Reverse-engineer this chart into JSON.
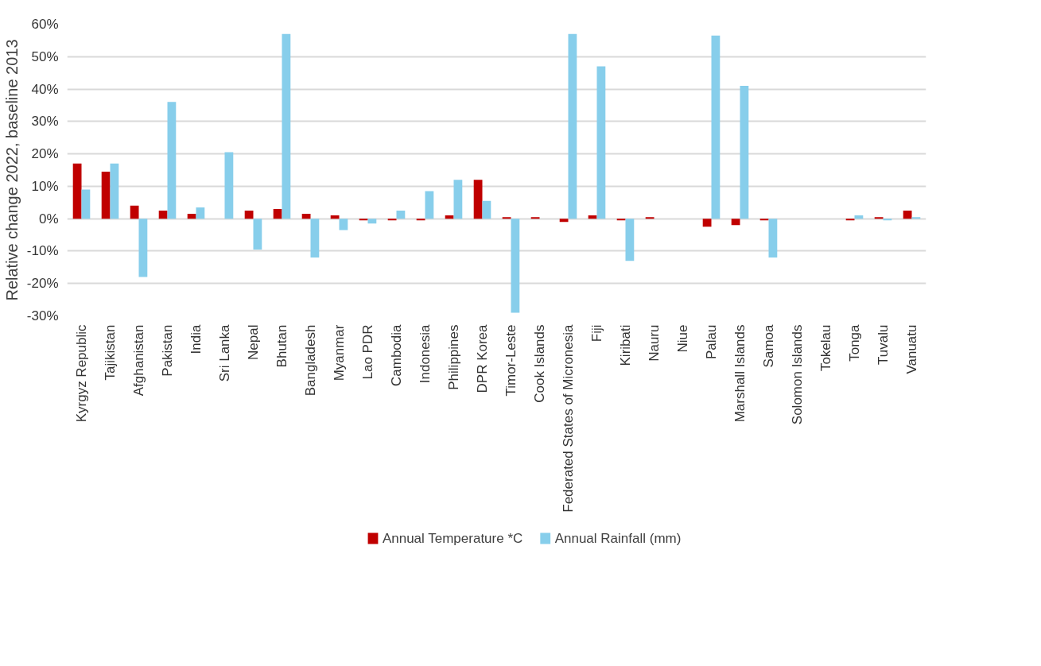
{
  "chart_data": {
    "type": "bar",
    "ylabel": "Relative change 2022, baseline 2013",
    "categories": [
      "Kyrgyz Republic",
      "Tajikistan",
      "Afghanistan",
      "Pakistan",
      "India",
      "Sri Lanka",
      "Nepal",
      "Bhutan",
      "Bangladesh",
      "Myanmar",
      "Lao PDR",
      "Cambodia",
      "Indonesia",
      "Philippines",
      "DPR Korea",
      "Timor-Leste",
      "Cook Islands",
      "Federated States of Micronesia",
      "Fiji",
      "Kiribati",
      "Nauru",
      "Niue",
      "Palau",
      "Marshall Islands",
      "Samoa",
      "Solomon Islands",
      "Tokelau",
      "Tonga",
      "Tuvalu",
      "Vanuatu"
    ],
    "series": [
      {
        "name": "Annual Temperature *C",
        "color": "#c00000",
        "values": [
          17,
          14.5,
          4,
          2.5,
          1.5,
          0,
          2.5,
          3,
          1.5,
          1,
          -0.5,
          -0.5,
          -0.5,
          1,
          12,
          0.5,
          0.5,
          -1,
          1,
          -0.5,
          0.5,
          0,
          -2.5,
          -2,
          -0.5,
          0,
          0,
          -0.5,
          0.5,
          2.5
        ]
      },
      {
        "name": "Annual Rainfall (mm)",
        "color": "#87ceeb",
        "values": [
          9,
          17,
          -18,
          36,
          3.5,
          20.5,
          -9.5,
          57,
          -12,
          -3.5,
          -1.5,
          2.5,
          8.5,
          12,
          5.5,
          -29,
          0,
          57,
          47,
          -13,
          0,
          0,
          56.5,
          41,
          -12,
          0,
          0,
          1,
          -0.5,
          0.5
        ]
      }
    ],
    "ylim": [
      -30,
      60
    ],
    "yticks": [
      {
        "value": -30,
        "label": "-30%"
      },
      {
        "value": -20,
        "label": "-20%"
      },
      {
        "value": -10,
        "label": "-10%"
      },
      {
        "value": 0,
        "label": "0%"
      },
      {
        "value": 10,
        "label": "10%"
      },
      {
        "value": 20,
        "label": "20%"
      },
      {
        "value": 30,
        "label": "30%"
      },
      {
        "value": 40,
        "label": "40%"
      },
      {
        "value": 50,
        "label": "50%"
      },
      {
        "value": 60,
        "label": "60%"
      }
    ],
    "grid": "y",
    "legend": "bottom"
  }
}
